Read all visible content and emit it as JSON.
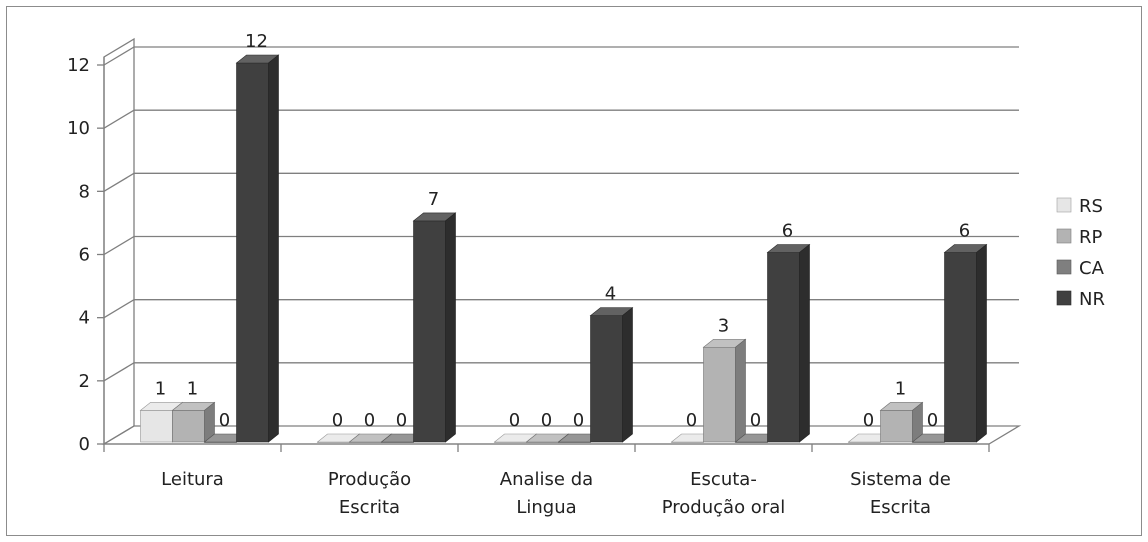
{
  "chart_data": {
    "type": "bar",
    "style": "3d-clustered-column",
    "categories": [
      [
        "Leitura"
      ],
      [
        "Produção",
        "Escrita"
      ],
      [
        "Analise da",
        "Lingua"
      ],
      [
        "Escuta-",
        "Produção oral"
      ],
      [
        "Sistema de",
        "Escrita"
      ]
    ],
    "series": [
      {
        "name": "RS",
        "color": "#e6e6e6",
        "values": [
          1,
          0,
          0,
          0,
          0
        ]
      },
      {
        "name": "RP",
        "color": "#b3b3b3",
        "values": [
          1,
          0,
          0,
          3,
          1
        ]
      },
      {
        "name": "CA",
        "color": "#7f7f7f",
        "values": [
          0,
          0,
          0,
          0,
          0
        ]
      },
      {
        "name": "NR",
        "color": "#404040",
        "values": [
          12,
          7,
          4,
          6,
          6
        ]
      }
    ],
    "ylim": [
      0,
      12
    ],
    "yticks": [
      0,
      2,
      4,
      6,
      8,
      10,
      12
    ],
    "grid": true,
    "legend": "right",
    "data_labels": true
  }
}
